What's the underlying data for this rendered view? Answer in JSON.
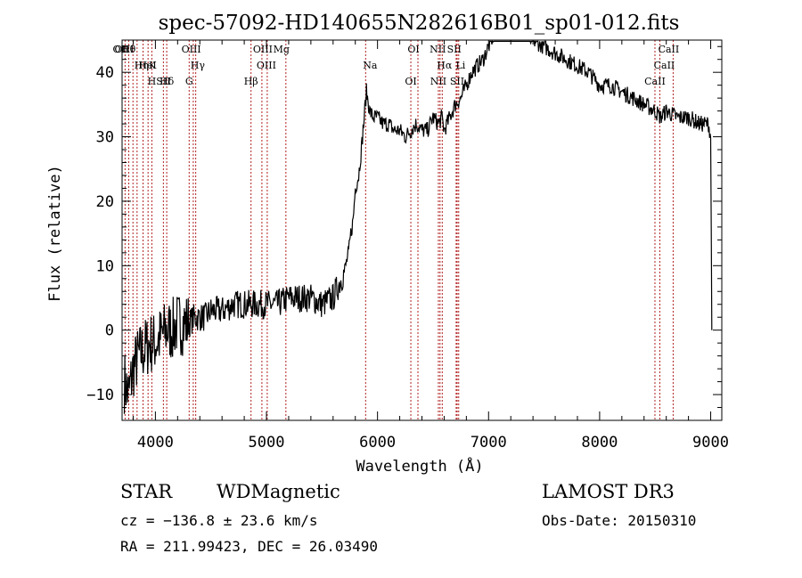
{
  "chart_data": {
    "type": "line",
    "title": "spec-57092-HD140655N282616B01_sp01-012.fits",
    "xlabel": "Wavelength (Å)",
    "ylabel": "Flux (relative)",
    "xlim": [
      3700,
      9100
    ],
    "ylim": [
      -14,
      45
    ],
    "x_ticks": [
      4000,
      5000,
      6000,
      7000,
      8000,
      9000
    ],
    "y_ticks": [
      -10,
      0,
      10,
      20,
      30,
      40
    ],
    "x_tick_labels": [
      "4000",
      "5000",
      "6000",
      "7000",
      "8000",
      "9000"
    ],
    "y_tick_labels": [
      "−10",
      "0",
      "10",
      "20",
      "30",
      "40"
    ],
    "grid": false,
    "line_color": "#000000",
    "marker_color": "#b22222",
    "series": [
      {
        "x": [
          3720,
          3760,
          3800,
          3850,
          3900,
          3950,
          4000,
          4050,
          4100,
          4150,
          4200,
          4250,
          4300,
          4350,
          4400,
          4450,
          4500,
          4600,
          4700,
          4800,
          4900,
          5000,
          5100,
          5200,
          5300,
          5400,
          5500,
          5600,
          5650,
          5700,
          5740,
          5760,
          5780,
          5800,
          5830,
          5860,
          5880,
          5900,
          5910,
          5930,
          5960,
          6000,
          6050,
          6100,
          6150,
          6200,
          6250,
          6300,
          6350,
          6400,
          6450,
          6500,
          6550,
          6580,
          6600,
          6650,
          6700,
          6750,
          6800,
          6850,
          6900,
          6950,
          7000,
          7050,
          7100,
          7150,
          7200,
          7300,
          7400,
          7500,
          7600,
          7700,
          7800,
          7900,
          8000,
          8100,
          8200,
          8300,
          8400,
          8500,
          8550,
          8600,
          8700,
          8800,
          8900,
          8980,
          9000,
          9010
        ],
        "y": [
          -8,
          -10,
          -6,
          -4,
          -3,
          -2,
          -2,
          -1,
          0,
          0,
          1,
          1,
          1,
          2,
          2,
          2,
          3,
          3,
          4,
          4,
          4,
          4,
          4,
          5,
          5,
          5,
          4,
          5,
          7,
          9,
          12,
          15,
          17,
          22,
          24,
          29,
          33,
          37,
          36,
          34,
          33,
          33,
          32,
          32,
          31,
          31,
          30,
          31,
          32,
          31,
          31,
          33,
          32,
          33,
          31,
          33,
          35,
          36,
          38,
          40,
          41,
          42,
          44,
          46,
          47,
          47,
          47,
          46,
          45,
          44,
          43,
          42,
          41,
          40,
          38,
          38,
          37,
          36,
          35,
          34,
          33,
          34,
          33,
          33,
          32,
          32,
          30,
          0
        ]
      }
    ],
    "lines": [
      {
        "name": "Hθ",
        "x": 3798
      },
      {
        "name": "K",
        "x": 3934
      },
      {
        "name": "Hδ",
        "x": 4102
      },
      {
        "name": "OII",
        "x": 3727
      },
      {
        "name": "HeI",
        "x": 3889
      },
      {
        "name": "SII",
        "x": 4072
      },
      {
        "name": "OIII",
        "x": 3760
      },
      {
        "name": "Hη",
        "x": 3835
      },
      {
        "name": "H",
        "x": 3968
      },
      {
        "name": "OIII",
        "x": 4363
      },
      {
        "name": "Hγ",
        "x": 4341
      },
      {
        "name": "G",
        "x": 4304
      },
      {
        "name": "OIII",
        "x": 5007
      },
      {
        "name": "OIII",
        "x": 4959
      },
      {
        "name": "Hβ",
        "x": 4861
      },
      {
        "name": "Mg",
        "x": 5175
      },
      {
        "name": "Na",
        "x": 5893
      },
      {
        "name": "OI",
        "x": 6300
      },
      {
        "name": "OI",
        "x": 6364
      },
      {
        "name": "Hα",
        "x": 6563
      },
      {
        "name": "SII",
        "x": 6717
      },
      {
        "name": "NII",
        "x": 6583
      },
      {
        "name": "Li",
        "x": 6708
      },
      {
        "name": "NII",
        "x": 6548
      },
      {
        "name": "SII",
        "x": 6731
      },
      {
        "name": "CaII",
        "x": 8542
      },
      {
        "name": "CaII",
        "x": 8498
      },
      {
        "name": "CaII",
        "x": 8662
      }
    ]
  },
  "info": {
    "class": "STAR",
    "subclass": "WDMagnetic",
    "survey": "LAMOST DR3",
    "cz": "cz = −136.8 ± 23.6 km/s",
    "obs_date": "Obs-Date: 20150310",
    "radec": "RA = 211.99423, DEC =  26.03490"
  }
}
